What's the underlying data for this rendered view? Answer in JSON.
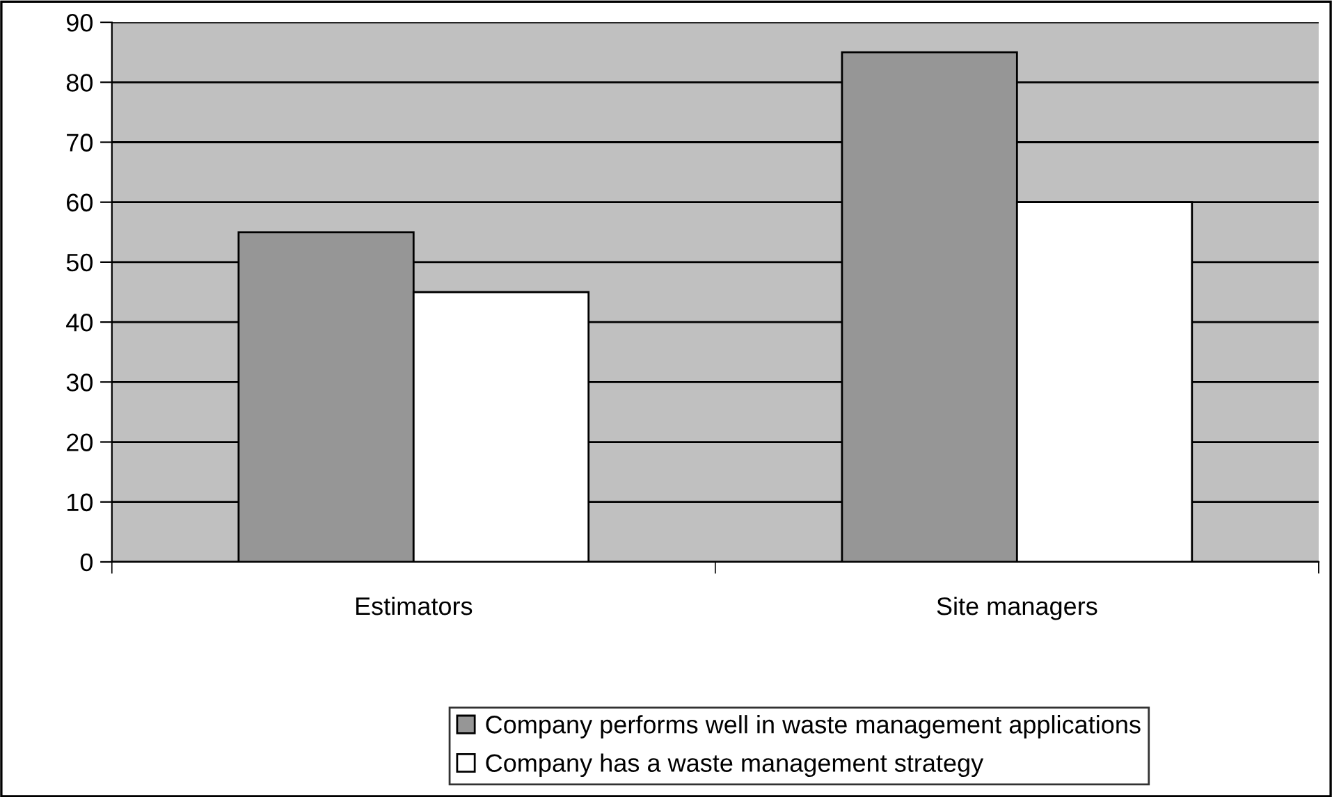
{
  "chart_data": {
    "type": "bar",
    "categories": [
      "Estimators",
      "Site managers"
    ],
    "series": [
      {
        "name": "Company performs well in waste management applications",
        "color": "#969696",
        "values": [
          55,
          85
        ]
      },
      {
        "name": "Company has a waste management strategy",
        "color": "#ffffff",
        "values": [
          45,
          60
        ]
      }
    ],
    "ylim": [
      0,
      90
    ],
    "yticks": [
      0,
      10,
      20,
      30,
      40,
      50,
      60,
      70,
      80,
      90
    ],
    "grid": "y",
    "legend": "bottom"
  }
}
